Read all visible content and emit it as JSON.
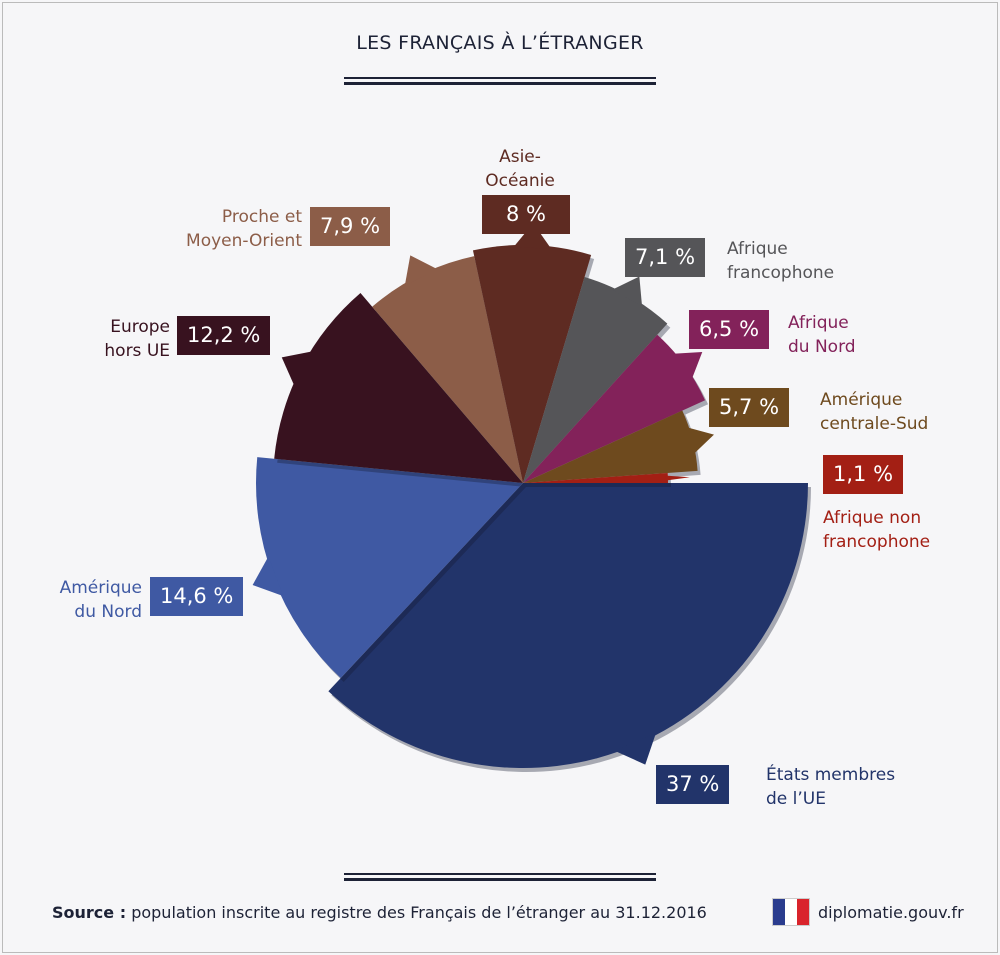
{
  "title": "LES FRANÇAIS À L’ÉTRANGER",
  "chart_data": {
    "type": "pie",
    "title": "LES FRANÇAIS À L’ÉTRANGER",
    "slices": [
      {
        "label": "États membres de l’UE",
        "value": 37,
        "display": "37 %",
        "color": "#22346a"
      },
      {
        "label": "Amérique du Nord",
        "value": 14.6,
        "display": "14,6 %",
        "color": "#3f59a3"
      },
      {
        "label": "Europe hors UE",
        "value": 12.2,
        "display": "12,2 %",
        "color": "#38121f"
      },
      {
        "label": "Proche et Moyen-Orient",
        "value": 7.9,
        "display": "7,9 %",
        "color": "#8c5d48"
      },
      {
        "label": "Asie-Océanie",
        "value": 8,
        "display": "8 %",
        "color": "#5e2b22"
      },
      {
        "label": "Afrique francophone",
        "value": 7.1,
        "display": "7,1 %",
        "color": "#555558"
      },
      {
        "label": "Afrique du Nord",
        "value": 6.5,
        "display": "6,5 %",
        "color": "#83225a"
      },
      {
        "label": "Amérique centrale-Sud",
        "value": 5.7,
        "display": "5,7 %",
        "color": "#6e4a1e"
      },
      {
        "label": "Afrique non francophone",
        "value": 1.1,
        "display": "1,1 %",
        "color": "#a31f14"
      }
    ]
  },
  "labels": {
    "eu": [
      "États membres",
      "de l’UE"
    ],
    "amn": [
      "Amérique",
      "du Nord"
    ],
    "eur": [
      "Europe",
      "hors UE"
    ],
    "pmo": [
      "Proche et",
      "Moyen-Orient"
    ],
    "asie": [
      "Asie-",
      "Océanie"
    ],
    "afr": [
      "Afrique",
      "francophone"
    ],
    "afn": [
      "Afrique",
      "du Nord"
    ],
    "acs": [
      "Amérique",
      "centrale-Sud"
    ],
    "anf": [
      "Afrique non",
      "francophone"
    ]
  },
  "footer": {
    "source_label": "Source :",
    "source_text": "population inscrite au registre des Français de l’étranger au 31.12.2016",
    "site": "diplomatie.gouv.fr"
  }
}
